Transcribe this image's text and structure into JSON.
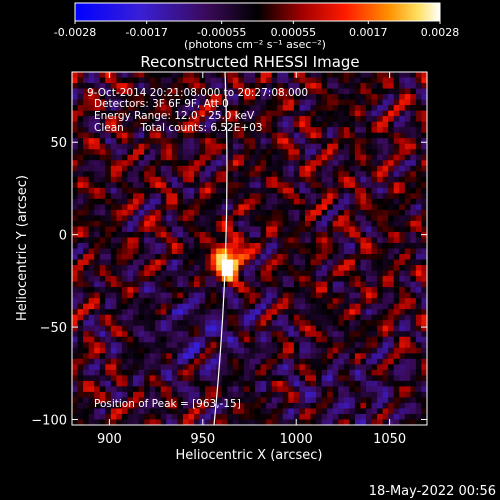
{
  "chart_data": {
    "type": "heatmap",
    "title": "Reconstructed RHESSI Image",
    "colorbar": {
      "ticks": [
        "-0.0028",
        "-0.0017",
        "-0.00055",
        "0.00055",
        "0.0017",
        "0.0028"
      ],
      "tick_values": [
        -0.0028,
        -0.0017,
        -0.00055,
        0.00055,
        0.0017,
        0.0028
      ],
      "range": [
        -0.0028,
        0.0028
      ],
      "unit_label": "(photons cm⁻² s⁻¹ asec⁻²)",
      "colormap": "blue-purple-black-red-orange-yellow-white"
    },
    "xlabel": "Heliocentric X (arcsec)",
    "ylabel": "Heliocentric Y (arcsec)",
    "xlim": [
      880,
      1070
    ],
    "ylim": [
      -103,
      88
    ],
    "xticks": [
      900,
      950,
      1000,
      1050
    ],
    "xtick_labels": [
      "900",
      "950",
      "1000",
      "1050"
    ],
    "yticks": [
      -100,
      -50,
      0,
      50
    ],
    "ytick_labels": [
      "−100",
      "−50",
      "0",
      "50"
    ],
    "annotations": [
      "9-Oct-2014 20:21:08.000 to 20:27:08.000",
      "Detectors: 3F 6F 9F, Att 0",
      "Energy Range: 12.0 - 25.0 keV",
      "Clean     Total counts: 6.52E+03"
    ],
    "peak_label": "Position of Peak = [963,-15]",
    "peak": {
      "x": 963,
      "y": -15
    },
    "limb_color": "#ffffff",
    "footer_timestamp": "18-May-2022 00:56"
  }
}
